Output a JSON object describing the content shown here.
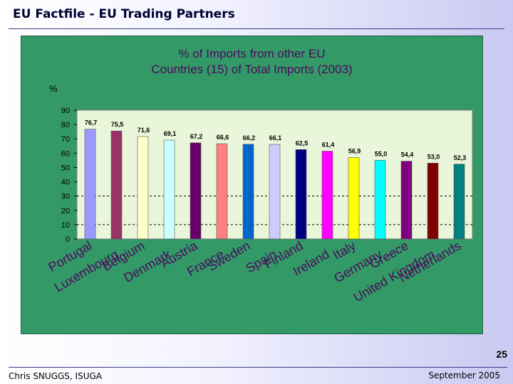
{
  "slide": {
    "title": "EU Factfile - EU Trading Partners",
    "page_number": "25",
    "footer_left": "Chris SNUGGS, ISUGA",
    "footer_right": "September 2005"
  },
  "colors": {
    "panel_bg": "#339966",
    "plot_bg": "#eaf6da",
    "title_color": "#4b0a5f"
  },
  "chart_data": {
    "type": "bar",
    "title_line1": "% of Imports from other EU",
    "title_line2": "Countries (15) of Total Imports (2003)",
    "ylabel": "%",
    "ylim": [
      0,
      90
    ],
    "yticks": [
      0,
      10,
      20,
      30,
      40,
      50,
      60,
      70,
      80,
      90
    ],
    "dashed_gridlines": [
      10,
      30
    ],
    "categories": [
      "Portugal",
      "Luxembourg",
      "Belgium",
      "Denmark",
      "Austria",
      "France",
      "Sweden",
      "Spain",
      "Finland",
      "Ireland",
      "Italy",
      "Germany",
      "Greece",
      "United Kingdom",
      "Netherlands"
    ],
    "values": [
      76.7,
      75.5,
      71.6,
      69.1,
      67.2,
      66.6,
      66.2,
      66.1,
      62.5,
      61.4,
      56.9,
      55.0,
      54.4,
      53.0,
      52.3
    ],
    "value_labels": [
      "76,7",
      "75,5",
      "71,6",
      "69,1",
      "67,2",
      "66,6",
      "66,2",
      "66,1",
      "62,5",
      "61,4",
      "56,9",
      "55,0",
      "54,4",
      "53,0",
      "52,3"
    ],
    "bar_colors": [
      "#9999ff",
      "#993366",
      "#ffffcc",
      "#ccffff",
      "#660066",
      "#ff8080",
      "#0066cc",
      "#ccccff",
      "#000080",
      "#ff00ff",
      "#ffff00",
      "#00ffff",
      "#800080",
      "#800000",
      "#008080"
    ]
  }
}
